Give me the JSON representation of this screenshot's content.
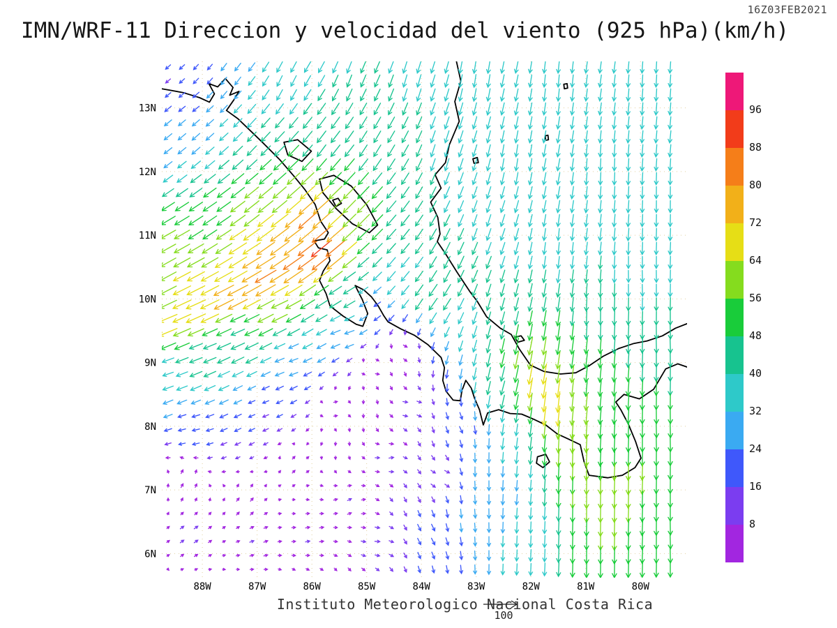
{
  "header": {
    "valid_time": "16Z03FEB2021",
    "title": "IMN/WRF-11 Direccion y velocidad del viento (925 hPa)(km/h)"
  },
  "footer": {
    "caption": "Instituto Meteorologico Nacional Costa Rica",
    "reference_value": "100"
  },
  "axes": {
    "lat_labels": [
      "13N",
      "12N",
      "11N",
      "10N",
      "9N",
      "8N",
      "7N",
      "6N"
    ],
    "lon_labels": [
      "88W",
      "87W",
      "86W",
      "85W",
      "84W",
      "83W",
      "82W",
      "81W",
      "80W"
    ]
  },
  "colorbar": {
    "labels": [
      "96",
      "88",
      "80",
      "72",
      "64",
      "56",
      "48",
      "40",
      "32",
      "24",
      "16",
      "8"
    ]
  },
  "chart_data": {
    "type": "vector_field",
    "quantity": "wind direction and speed",
    "model": "IMN/WRF-11",
    "level": "925 hPa",
    "units": "km/h",
    "valid_time": "16Z03FEB2021",
    "lon_range": [
      -88.74,
      -79.15
    ],
    "lat_range": [
      5.62,
      13.73
    ],
    "grid_spacing_px": 20,
    "reference_speed": 100,
    "speed_levels": [
      8,
      16,
      24,
      32,
      40,
      48,
      56,
      64,
      72,
      80,
      88,
      96
    ],
    "palette": [
      "#a226e0",
      "#7b3df0",
      "#3f58fb",
      "#3aaaf2",
      "#2ec9c9",
      "#17c38f",
      "#19cc3a",
      "#85dc1e",
      "#e6de16",
      "#f2b019",
      "#f57e19",
      "#f23c1a",
      "#ee1878"
    ],
    "control_points": [
      [
        -85.75,
        10.8,
        230,
        97
      ],
      [
        -86.3,
        10.55,
        235,
        90
      ],
      [
        -86.85,
        10.3,
        240,
        88
      ],
      [
        -87.45,
        10.05,
        243,
        84
      ],
      [
        -88.1,
        9.8,
        246,
        76
      ],
      [
        -88.6,
        9.55,
        248,
        68
      ],
      [
        -86.0,
        11.3,
        228,
        85
      ],
      [
        -86.6,
        11.0,
        233,
        80
      ],
      [
        -87.3,
        10.7,
        238,
        72
      ],
      [
        -88.2,
        10.4,
        242,
        66
      ],
      [
        -87.0,
        11.35,
        231,
        62
      ],
      [
        -87.8,
        11.1,
        236,
        52
      ],
      [
        -88.5,
        10.9,
        241,
        58
      ],
      [
        -86.45,
        11.7,
        228,
        55
      ],
      [
        -85.3,
        11.4,
        224,
        58
      ],
      [
        -86.6,
        9.9,
        246,
        58
      ],
      [
        -87.3,
        9.55,
        248,
        45
      ],
      [
        -88.0,
        9.2,
        250,
        40
      ],
      [
        -88.65,
        8.85,
        252,
        32
      ],
      [
        -85.35,
        10.05,
        240,
        45
      ],
      [
        -88.55,
        13.45,
        230,
        14
      ],
      [
        -87.95,
        13.6,
        222,
        16
      ],
      [
        -88.2,
        13.0,
        233,
        22
      ],
      [
        -88.6,
        12.3,
        232,
        28
      ],
      [
        -87.6,
        13.5,
        215,
        28
      ],
      [
        -86.5,
        13.4,
        205,
        36
      ],
      [
        -85.3,
        13.5,
        200,
        40
      ],
      [
        -84.2,
        13.4,
        195,
        40
      ],
      [
        -83.0,
        13.5,
        188,
        40
      ],
      [
        -81.5,
        13.4,
        185,
        38
      ],
      [
        -79.8,
        13.4,
        183,
        38
      ],
      [
        -88.0,
        12.6,
        228,
        30
      ],
      [
        -87.0,
        12.5,
        222,
        40
      ],
      [
        -85.8,
        12.4,
        216,
        46
      ],
      [
        -84.8,
        12.5,
        210,
        42
      ],
      [
        -83.6,
        12.3,
        196,
        40
      ],
      [
        -82.3,
        12.2,
        188,
        38
      ],
      [
        -80.6,
        12.0,
        182,
        38
      ],
      [
        -79.6,
        11.5,
        180,
        37
      ],
      [
        -82.8,
        11.2,
        198,
        38
      ],
      [
        -81.5,
        10.8,
        185,
        36
      ],
      [
        -80.0,
        10.3,
        178,
        36
      ],
      [
        -83.3,
        10.6,
        205,
        44
      ],
      [
        -82.5,
        9.9,
        195,
        40
      ],
      [
        -80.8,
        9.7,
        180,
        44
      ],
      [
        -79.5,
        9.3,
        178,
        44
      ],
      [
        -81.6,
        9.2,
        188,
        55
      ],
      [
        -81.95,
        9.1,
        192,
        62
      ],
      [
        -81.9,
        8.75,
        190,
        80
      ],
      [
        -81.55,
        8.3,
        186,
        74
      ],
      [
        -81.3,
        7.6,
        182,
        64
      ],
      [
        -81.05,
        6.8,
        180,
        60
      ],
      [
        -80.8,
        6.0,
        180,
        56
      ],
      [
        -80.45,
        6.4,
        181,
        62
      ],
      [
        -80.2,
        7.1,
        182,
        60
      ],
      [
        -80.1,
        6.3,
        183,
        52
      ],
      [
        -79.5,
        6.9,
        180,
        50
      ],
      [
        -79.6,
        7.9,
        178,
        52
      ],
      [
        -79.4,
        6.2,
        178,
        48
      ],
      [
        -80.9,
        8.6,
        185,
        55
      ],
      [
        -82.45,
        8.6,
        196,
        46
      ],
      [
        -82.35,
        7.9,
        188,
        34
      ],
      [
        -82.2,
        7.0,
        185,
        30
      ],
      [
        -82.0,
        6.3,
        183,
        34
      ],
      [
        -82.9,
        7.3,
        180,
        30
      ],
      [
        -84.9,
        8.9,
        80,
        10
      ],
      [
        -84.2,
        8.3,
        85,
        12
      ],
      [
        -85.6,
        8.3,
        70,
        9
      ],
      [
        -84.6,
        7.5,
        75,
        11
      ],
      [
        -83.6,
        7.2,
        95,
        13
      ],
      [
        -85.3,
        6.8,
        60,
        9
      ],
      [
        -86.3,
        7.4,
        45,
        8
      ],
      [
        -87.2,
        6.8,
        40,
        9
      ],
      [
        -88.2,
        6.3,
        55,
        10
      ],
      [
        -88.3,
        7.2,
        35,
        10
      ],
      [
        -88.2,
        7.9,
        258,
        20
      ],
      [
        -87.0,
        6.2,
        70,
        9
      ],
      [
        -86.0,
        6.3,
        75,
        9
      ],
      [
        -84.8,
        6.2,
        90,
        11
      ],
      [
        -83.8,
        6.3,
        150,
        20
      ],
      [
        -83.3,
        6.6,
        175,
        26
      ],
      [
        -83.3,
        8.0,
        150,
        18
      ],
      [
        -84.3,
        9.2,
        100,
        10
      ],
      [
        -85.4,
        9.45,
        255,
        30
      ],
      [
        -86.4,
        9.0,
        253,
        25
      ],
      [
        -86.9,
        8.3,
        250,
        15
      ],
      [
        -83.8,
        10.0,
        215,
        48
      ],
      [
        -84.5,
        10.4,
        220,
        40
      ],
      [
        -84.9,
        9.9,
        240,
        18
      ]
    ]
  },
  "map": {
    "coastlines": [
      {
        "name": "pacific-coast",
        "closed": false,
        "points": [
          [
            -88.74,
            13.3
          ],
          [
            -88.35,
            13.24
          ],
          [
            -88.05,
            13.16
          ],
          [
            -87.87,
            13.09
          ],
          [
            -87.78,
            13.22
          ],
          [
            -87.88,
            13.38
          ],
          [
            -87.72,
            13.33
          ],
          [
            -87.58,
            13.46
          ],
          [
            -87.44,
            13.32
          ],
          [
            -87.5,
            13.2
          ],
          [
            -87.33,
            13.26
          ],
          [
            -87.43,
            13.12
          ],
          [
            -87.56,
            12.96
          ],
          [
            -87.35,
            12.83
          ],
          [
            -87.17,
            12.68
          ],
          [
            -86.88,
            12.44
          ],
          [
            -86.58,
            12.18
          ],
          [
            -86.33,
            11.93
          ],
          [
            -86.13,
            11.72
          ],
          [
            -85.94,
            11.48
          ],
          [
            -85.84,
            11.22
          ],
          [
            -85.7,
            11.04
          ],
          [
            -85.77,
            10.94
          ],
          [
            -85.96,
            10.91
          ],
          [
            -85.88,
            10.8
          ],
          [
            -85.72,
            10.77
          ],
          [
            -85.67,
            10.6
          ],
          [
            -85.79,
            10.44
          ],
          [
            -85.86,
            10.29
          ],
          [
            -85.74,
            10.08
          ],
          [
            -85.67,
            9.89
          ],
          [
            -85.43,
            9.73
          ],
          [
            -85.19,
            9.6
          ],
          [
            -85.07,
            9.57
          ],
          [
            -84.98,
            9.77
          ],
          [
            -85.08,
            9.99
          ],
          [
            -85.21,
            10.21
          ],
          [
            -85.05,
            10.14
          ],
          [
            -84.91,
            10.03
          ],
          [
            -84.79,
            9.89
          ],
          [
            -84.69,
            9.74
          ],
          [
            -84.61,
            9.64
          ],
          [
            -84.38,
            9.53
          ],
          [
            -84.13,
            9.43
          ],
          [
            -83.88,
            9.28
          ],
          [
            -83.64,
            9.08
          ],
          [
            -83.58,
            8.92
          ],
          [
            -83.61,
            8.72
          ],
          [
            -83.55,
            8.55
          ],
          [
            -83.42,
            8.41
          ],
          [
            -83.29,
            8.4
          ],
          [
            -83.26,
            8.56
          ],
          [
            -83.19,
            8.72
          ],
          [
            -83.09,
            8.6
          ],
          [
            -83.03,
            8.44
          ],
          [
            -82.94,
            8.26
          ],
          [
            -82.87,
            8.02
          ],
          [
            -82.79,
            8.21
          ],
          [
            -82.59,
            8.26
          ],
          [
            -82.38,
            8.2
          ],
          [
            -82.17,
            8.19
          ],
          [
            -81.95,
            8.11
          ],
          [
            -81.73,
            8.02
          ],
          [
            -81.52,
            7.88
          ],
          [
            -81.32,
            7.8
          ],
          [
            -81.1,
            7.71
          ],
          [
            -81.03,
            7.44
          ],
          [
            -80.94,
            7.23
          ],
          [
            -80.6,
            7.19
          ],
          [
            -80.33,
            7.23
          ],
          [
            -80.1,
            7.35
          ],
          [
            -79.99,
            7.5
          ],
          [
            -80.09,
            7.76
          ],
          [
            -80.22,
            8.03
          ],
          [
            -80.36,
            8.26
          ],
          [
            -80.45,
            8.38
          ],
          [
            -80.3,
            8.5
          ],
          [
            -80.02,
            8.43
          ],
          [
            -79.76,
            8.58
          ],
          [
            -79.54,
            8.9
          ],
          [
            -79.32,
            8.98
          ],
          [
            -79.15,
            8.93
          ]
        ]
      },
      {
        "name": "caribbean-coast",
        "closed": false,
        "points": [
          [
            -83.36,
            13.73
          ],
          [
            -83.28,
            13.42
          ],
          [
            -83.39,
            13.1
          ],
          [
            -83.31,
            12.79
          ],
          [
            -83.49,
            12.42
          ],
          [
            -83.56,
            12.14
          ],
          [
            -83.75,
            11.95
          ],
          [
            -83.64,
            11.74
          ],
          [
            -83.83,
            11.52
          ],
          [
            -83.7,
            11.28
          ],
          [
            -83.66,
            11.02
          ],
          [
            -83.71,
            10.9
          ],
          [
            -83.56,
            10.71
          ],
          [
            -83.35,
            10.42
          ],
          [
            -83.12,
            10.12
          ],
          [
            -82.98,
            9.96
          ],
          [
            -82.81,
            9.72
          ],
          [
            -82.56,
            9.54
          ],
          [
            -82.36,
            9.44
          ],
          [
            -82.21,
            9.21
          ],
          [
            -82.01,
            8.96
          ],
          [
            -81.76,
            8.86
          ],
          [
            -81.46,
            8.82
          ],
          [
            -81.18,
            8.84
          ],
          [
            -80.94,
            8.95
          ],
          [
            -80.68,
            9.1
          ],
          [
            -80.4,
            9.22
          ],
          [
            -80.12,
            9.3
          ],
          [
            -79.88,
            9.34
          ],
          [
            -79.6,
            9.42
          ],
          [
            -79.36,
            9.54
          ],
          [
            -79.15,
            9.61
          ]
        ]
      },
      {
        "name": "lake-nicaragua",
        "closed": true,
        "points": [
          [
            -85.86,
            11.88
          ],
          [
            -85.6,
            11.94
          ],
          [
            -85.28,
            11.77
          ],
          [
            -85.0,
            11.48
          ],
          [
            -84.8,
            11.16
          ],
          [
            -84.95,
            11.04
          ],
          [
            -85.26,
            11.18
          ],
          [
            -85.56,
            11.42
          ],
          [
            -85.8,
            11.67
          ]
        ]
      },
      {
        "name": "lake-managua",
        "closed": true,
        "points": [
          [
            -86.51,
            12.46
          ],
          [
            -86.26,
            12.5
          ],
          [
            -86.01,
            12.32
          ],
          [
            -86.18,
            12.16
          ],
          [
            -86.44,
            12.26
          ]
        ]
      },
      {
        "name": "ometepe-island",
        "closed": true,
        "points": [
          [
            -85.62,
            11.55
          ],
          [
            -85.52,
            11.58
          ],
          [
            -85.46,
            11.5
          ],
          [
            -85.56,
            11.45
          ]
        ]
      },
      {
        "name": "coiba-island",
        "closed": true,
        "points": [
          [
            -81.88,
            7.52
          ],
          [
            -81.73,
            7.56
          ],
          [
            -81.66,
            7.44
          ],
          [
            -81.78,
            7.35
          ],
          [
            -81.9,
            7.42
          ]
        ]
      },
      {
        "name": "bocas-islands",
        "closed": true,
        "points": [
          [
            -82.3,
            9.4
          ],
          [
            -82.18,
            9.42
          ],
          [
            -82.12,
            9.35
          ],
          [
            -82.24,
            9.32
          ]
        ]
      },
      {
        "name": "corn-island",
        "closed": true,
        "points": [
          [
            -83.06,
            12.2
          ],
          [
            -82.98,
            12.22
          ],
          [
            -82.96,
            12.14
          ],
          [
            -83.04,
            12.13
          ]
        ]
      },
      {
        "name": "providencia-island",
        "closed": true,
        "points": [
          [
            -81.4,
            13.37
          ],
          [
            -81.34,
            13.38
          ],
          [
            -81.33,
            13.31
          ],
          [
            -81.39,
            13.3
          ]
        ]
      },
      {
        "name": "san-andres-island",
        "closed": true,
        "points": [
          [
            -81.74,
            12.56
          ],
          [
            -81.69,
            12.57
          ],
          [
            -81.68,
            12.5
          ],
          [
            -81.73,
            12.49
          ]
        ]
      }
    ]
  }
}
